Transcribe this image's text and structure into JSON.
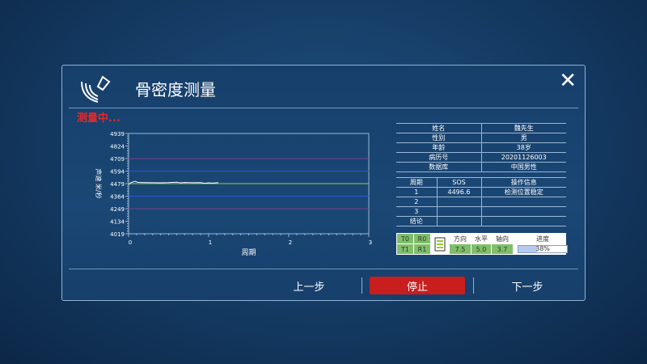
{
  "dialog": {
    "title": "骨密度测量",
    "status": "测量中...",
    "close_icon": "close-icon",
    "logo_icon": "ultrasound-probe-icon"
  },
  "patient": [
    [
      "姓名",
      "魏先生"
    ],
    [
      "性别",
      "男"
    ],
    [
      "年龄",
      "38岁"
    ],
    [
      "病历号",
      "20201126003"
    ],
    [
      "数据库",
      "中国男性"
    ]
  ],
  "results": {
    "headers": [
      "周期",
      "SOS",
      "操作信息"
    ],
    "rows": [
      [
        "1",
        "4496.6",
        "检测位置稳定"
      ],
      [
        "2",
        "",
        ""
      ],
      [
        "3",
        "",
        ""
      ],
      [
        "结论",
        "",
        ""
      ]
    ]
  },
  "strip": {
    "t0": "T0",
    "r0": "R0",
    "t1": "T1",
    "r1": "R1",
    "labels": [
      "方向",
      "水平",
      "轴向"
    ],
    "values": [
      "7.5",
      "5.0",
      "3.7"
    ],
    "progress_label": "进度",
    "progress_text": "38%",
    "progress": 38
  },
  "buttons": {
    "prev": "上一步",
    "stop": "停止",
    "next": "下一步"
  },
  "colors": {
    "stop": "#c81e1e",
    "status": "#e02a2a"
  },
  "chart_data": {
    "type": "line",
    "xlabel": "周期",
    "ylabel": "声速 米/秒",
    "xlim": [
      0,
      3
    ],
    "ylim": [
      4019,
      4939
    ],
    "xticks": [
      0,
      1,
      2,
      3
    ],
    "yticks": [
      4019,
      4134,
      4249,
      4364,
      4479,
      4594,
      4709,
      4824,
      4939
    ],
    "reference_lines": [
      {
        "y": 4709,
        "color": "#7a3d8a"
      },
      {
        "y": 4594,
        "color": "#2a56d8"
      },
      {
        "y": 4479,
        "color": "#8fd04a"
      },
      {
        "y": 4364,
        "color": "#2a56d8"
      },
      {
        "y": 4249,
        "color": "#7a3d8a"
      }
    ],
    "series": [
      {
        "x": [
          0,
          0.03,
          0.08,
          0.12,
          0.2,
          0.3,
          0.4,
          0.5,
          0.6,
          0.65,
          0.7,
          0.8,
          0.9,
          0.95,
          1.0,
          1.05,
          1.12
        ],
        "y": [
          4470,
          4488,
          4500,
          4490,
          4488,
          4487,
          4486,
          4488,
          4492,
          4486,
          4489,
          4487,
          4488,
          4482,
          4486,
          4484,
          4488
        ]
      }
    ]
  }
}
